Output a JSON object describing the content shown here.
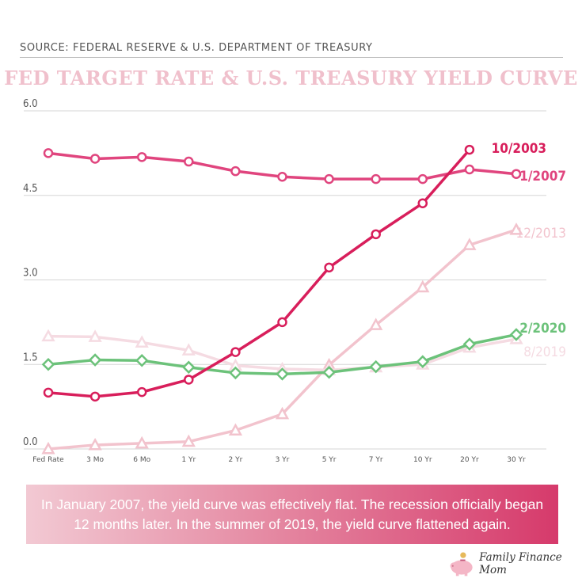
{
  "source": "SOURCE: FEDERAL RESERVE & U.S. DEPARTMENT OF TREASURY",
  "title": "FED TARGET RATE & U.S. TREASURY YIELD CURVE",
  "caption": "In January 2007, the yield curve was effectively flat. The recession officially began 12 months later. In the summer of 2019, the yield curve flattened again.",
  "brand": "Family Finance Mom",
  "colors": {
    "title": "#f0c0cc",
    "s2003": "#d81e5b",
    "s2007": "#e0457e",
    "s2013": "#f2c3cd",
    "s2020": "#6cc27a",
    "s2019": "#f5dbe2"
  },
  "chart_data": {
    "type": "line",
    "title": "FED TARGET RATE & U.S. TREASURY YIELD CURVE",
    "xlabel": "",
    "ylabel": "",
    "categories": [
      "Fed Rate",
      "3 Mo",
      "6 Mo",
      "1 Yr",
      "2 Yr",
      "3 Yr",
      "5 Yr",
      "7 Yr",
      "10 Yr",
      "20 Yr",
      "30 Yr"
    ],
    "ylim": [
      0,
      6
    ],
    "yticks": [
      "0.0",
      "1.5",
      "3.0",
      "4.5",
      "6.0"
    ],
    "grid": true,
    "series": [
      {
        "name": "12/2013",
        "marker": "triangle",
        "values": [
          0.0,
          0.07,
          0.1,
          0.13,
          0.33,
          0.62,
          1.49,
          2.2,
          2.87,
          3.62,
          3.89
        ]
      },
      {
        "name": "8/2019",
        "marker": "triangle",
        "values": [
          2.0,
          1.99,
          1.89,
          1.75,
          1.48,
          1.42,
          1.4,
          1.45,
          1.5,
          1.8,
          1.95
        ]
      },
      {
        "name": "1/2007",
        "marker": "circle",
        "values": [
          5.25,
          5.15,
          5.18,
          5.1,
          4.93,
          4.83,
          4.79,
          4.79,
          4.79,
          4.96,
          4.88
        ]
      },
      {
        "name": "2/2020",
        "marker": "diamond",
        "values": [
          1.5,
          1.58,
          1.57,
          1.45,
          1.35,
          1.33,
          1.36,
          1.46,
          1.55,
          1.86,
          2.03
        ]
      },
      {
        "name": "10/2003",
        "marker": "circle",
        "values": [
          1.0,
          0.93,
          1.01,
          1.23,
          1.72,
          2.25,
          3.22,
          3.81,
          4.36,
          5.31,
          null
        ]
      }
    ]
  }
}
